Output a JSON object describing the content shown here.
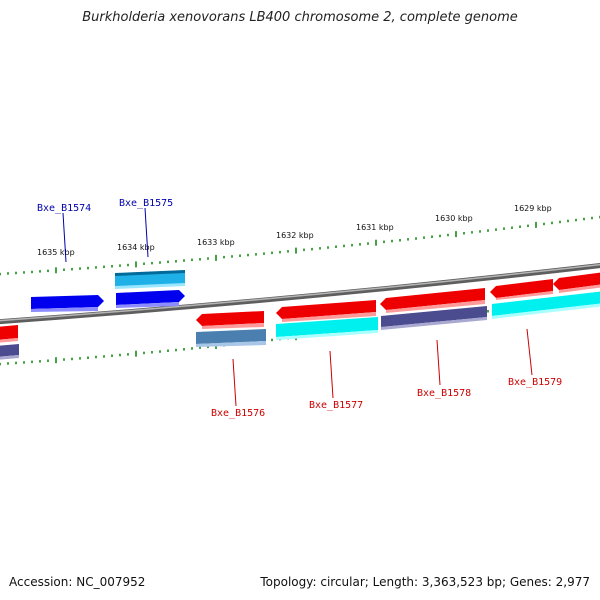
{
  "title": "Burkholderia xenovorans LB400 chromosome 2, complete genome",
  "footer": {
    "accession": "Accession: NC_007952",
    "summary": "Topology: circular; Length: 3,363,523 bp; Genes: 2,977"
  },
  "tick_labels": [
    "1635 kbp",
    "1634 kbp",
    "1633 kbp",
    "1632 kbp",
    "1631 kbp",
    "1630 kbp",
    "1629 kbp"
  ],
  "gene_labels": [
    "Bxe_B1574",
    "Bxe_B1575",
    "Bxe_B1576",
    "Bxe_B1577",
    "Bxe_B1578",
    "Bxe_B1579"
  ],
  "colors": {
    "forward_gene": "#0000ee",
    "forward_cog": "#1fb0e8",
    "reverse_gene": "#ee0000",
    "reverse_cog_cyan": "#00f0f0",
    "reverse_cog_steel": "#4a7fb0",
    "reverse_cog_purple": "#4b4b8f",
    "backbone": "#777777",
    "ticks": "#1a8a1a",
    "label_forward": "#0000aa",
    "label_reverse": "#cc0000"
  }
}
